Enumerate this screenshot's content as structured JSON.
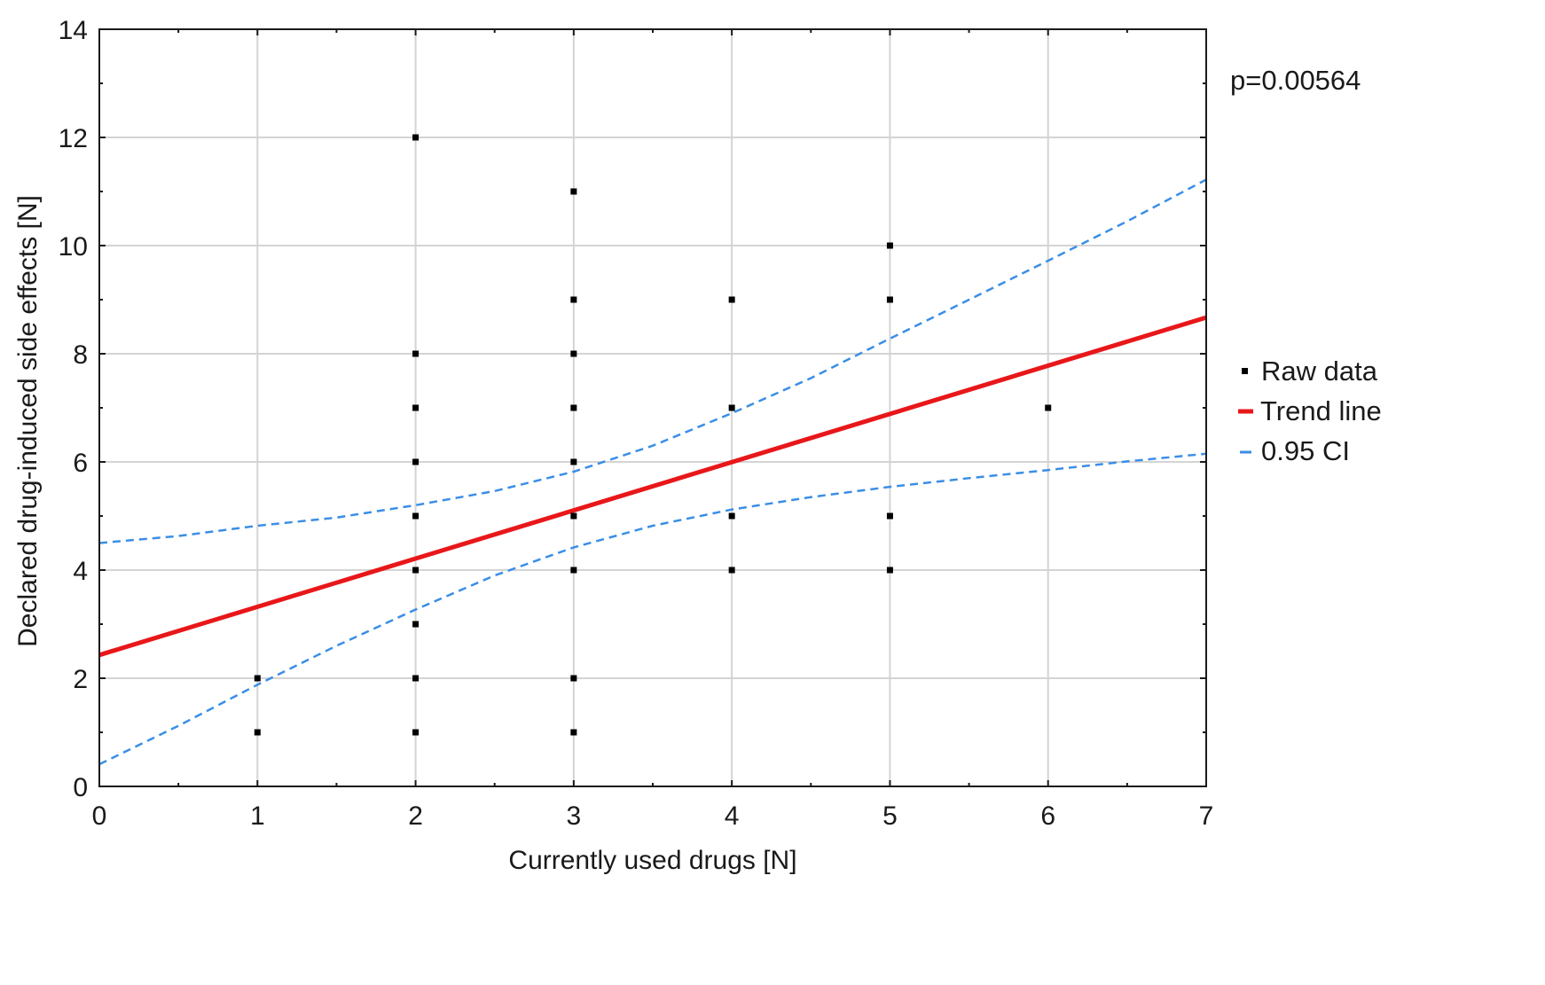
{
  "chart_data": {
    "type": "scatter",
    "title": "",
    "xlabel": "Currently used drugs [N]",
    "ylabel": "Declared drug-induced side effects [N]",
    "xlim": [
      0,
      7
    ],
    "ylim": [
      0,
      14
    ],
    "xticks": [
      0,
      1,
      2,
      3,
      4,
      5,
      6,
      7
    ],
    "yticks": [
      0,
      2,
      4,
      6,
      8,
      10,
      12,
      14
    ],
    "grid": true,
    "legend_position": "right",
    "annotation": "p=0.00564",
    "colors": {
      "raw": "#000000",
      "trend": "#e8171a",
      "ci": "#3a8ee6",
      "grid": "#d4d4d4",
      "axis": "#1a1a1a"
    },
    "series": [
      {
        "name": "Raw data",
        "kind": "points",
        "points": [
          [
            1,
            1
          ],
          [
            1,
            2
          ],
          [
            2,
            1
          ],
          [
            2,
            2
          ],
          [
            2,
            3
          ],
          [
            2,
            4
          ],
          [
            2,
            5
          ],
          [
            2,
            6
          ],
          [
            2,
            7
          ],
          [
            2,
            8
          ],
          [
            2,
            12
          ],
          [
            3,
            1
          ],
          [
            3,
            2
          ],
          [
            3,
            4
          ],
          [
            3,
            5
          ],
          [
            3,
            6
          ],
          [
            3,
            7
          ],
          [
            3,
            8
          ],
          [
            3,
            9
          ],
          [
            3,
            11
          ],
          [
            4,
            4
          ],
          [
            4,
            5
          ],
          [
            4,
            7
          ],
          [
            4,
            9
          ],
          [
            5,
            4
          ],
          [
            5,
            5
          ],
          [
            5,
            9
          ],
          [
            5,
            10
          ],
          [
            6,
            7
          ]
        ]
      },
      {
        "name": "Trend line",
        "kind": "line",
        "points": [
          [
            0,
            2.43
          ],
          [
            7,
            8.67
          ]
        ]
      },
      {
        "name": "0.95 CI",
        "kind": "band",
        "upper": [
          [
            0,
            4.5
          ],
          [
            0.5,
            4.63
          ],
          [
            1,
            4.82
          ],
          [
            1.5,
            4.97
          ],
          [
            2,
            5.2
          ],
          [
            2.5,
            5.46
          ],
          [
            3,
            5.82
          ],
          [
            3.5,
            6.3
          ],
          [
            4,
            6.9
          ],
          [
            4.5,
            7.55
          ],
          [
            5,
            8.28
          ],
          [
            5.5,
            9.0
          ],
          [
            6,
            9.72
          ],
          [
            6.5,
            10.45
          ],
          [
            7,
            11.22
          ]
        ],
        "lower": [
          [
            0,
            0.41
          ],
          [
            0.5,
            1.12
          ],
          [
            1,
            1.88
          ],
          [
            1.5,
            2.6
          ],
          [
            2,
            3.27
          ],
          [
            2.5,
            3.9
          ],
          [
            3,
            4.42
          ],
          [
            3.5,
            4.82
          ],
          [
            4,
            5.12
          ],
          [
            4.5,
            5.35
          ],
          [
            5,
            5.54
          ],
          [
            5.5,
            5.7
          ],
          [
            6,
            5.85
          ],
          [
            6.5,
            6.01
          ],
          [
            7,
            6.15
          ]
        ]
      }
    ]
  }
}
